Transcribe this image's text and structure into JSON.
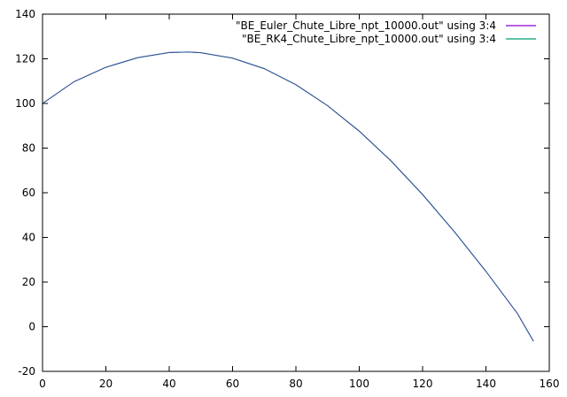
{
  "chart_data": {
    "type": "line",
    "title": "",
    "xlabel": "",
    "ylabel": "",
    "xlim": [
      0,
      160
    ],
    "ylim": [
      -20,
      140
    ],
    "x_ticks": [
      0,
      20,
      40,
      60,
      80,
      100,
      120,
      140,
      160
    ],
    "y_ticks": [
      -20,
      0,
      20,
      40,
      60,
      80,
      100,
      120,
      140
    ],
    "grid": false,
    "legend_position": "top-right",
    "series": [
      {
        "name": "\"BE_Euler_Chute_Libre_npt_10000.out\" using 3:4",
        "color": "#9400d3",
        "x": [
          0,
          10,
          20,
          30,
          40,
          46,
          50,
          60,
          70,
          80,
          90,
          100,
          110,
          120,
          130,
          140,
          150,
          155
        ],
        "y": [
          100,
          109.8,
          116.2,
          120.5,
          122.8,
          123.0,
          122.7,
          120.3,
          115.6,
          108.4,
          99.0,
          87.6,
          74.3,
          59.2,
          42.6,
          24.8,
          5.8,
          -6.5
        ]
      },
      {
        "name": "\"BE_RK4_Chute_Libre_npt_10000.out\" using 3:4",
        "color": "#009e73",
        "x": [
          0,
          10,
          20,
          30,
          40,
          46,
          50,
          60,
          70,
          80,
          90,
          100,
          110,
          120,
          130,
          140,
          150,
          155
        ],
        "y": [
          100,
          109.8,
          116.2,
          120.5,
          122.8,
          123.0,
          122.7,
          120.3,
          115.6,
          108.4,
          99.0,
          87.6,
          74.3,
          59.2,
          42.6,
          24.8,
          5.8,
          -6.5
        ]
      }
    ]
  }
}
